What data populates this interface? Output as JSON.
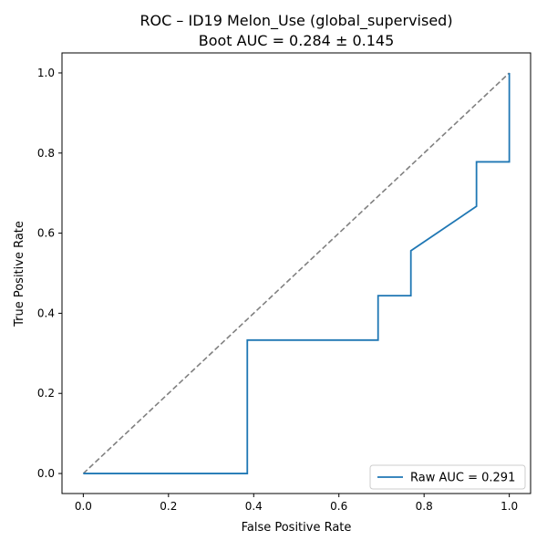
{
  "chart_data": {
    "type": "line",
    "title": "ROC – ID19 Melon_Use (global_supervised)",
    "subtitle": "Boot AUC = 0.284 ± 0.145",
    "xlabel": "False Positive Rate",
    "ylabel": "True Positive Rate",
    "xlim": [
      -0.05,
      1.05
    ],
    "ylim": [
      -0.05,
      1.05
    ],
    "xticks": [
      0.0,
      0.2,
      0.4,
      0.6,
      0.8,
      1.0
    ],
    "yticks": [
      0.0,
      0.2,
      0.4,
      0.6,
      0.8,
      1.0
    ],
    "xtick_labels": [
      "0.0",
      "0.2",
      "0.4",
      "0.6",
      "0.8",
      "1.0"
    ],
    "ytick_labels": [
      "0.0",
      "0.2",
      "0.4",
      "0.6",
      "0.8",
      "1.0"
    ],
    "grid": false,
    "legend_position": "lower-right",
    "series": [
      {
        "name": "Raw AUC = 0.291",
        "color": "#1f77b4",
        "line_style": "solid",
        "x": [
          0.0,
          0.385,
          0.385,
          0.692,
          0.692,
          0.769,
          0.769,
          0.923,
          0.923,
          1.0,
          1.0
        ],
        "y": [
          0.0,
          0.0,
          0.333,
          0.333,
          0.444,
          0.444,
          0.556,
          0.667,
          0.778,
          0.778,
          1.0
        ]
      }
    ],
    "reference_line": {
      "color": "#808080",
      "line_style": "dashed",
      "x": [
        0.0,
        1.0
      ],
      "y": [
        0.0,
        1.0
      ]
    }
  }
}
